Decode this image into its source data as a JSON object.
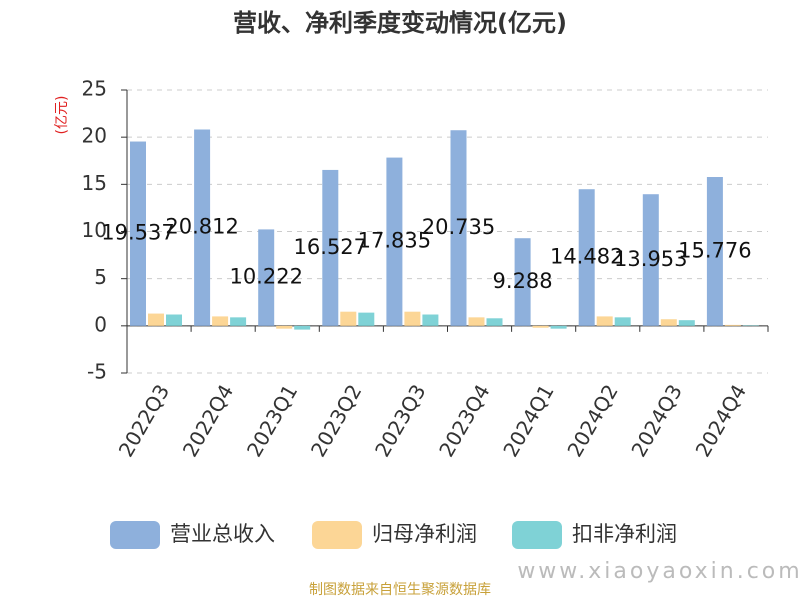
{
  "chart_data": {
    "type": "bar",
    "title": "营收、净利季度变动情况(亿元)",
    "y_label": "(亿元)",
    "categories": [
      "2022Q3",
      "2022Q4",
      "2023Q1",
      "2023Q2",
      "2023Q3",
      "2023Q4",
      "2024Q1",
      "2024Q2",
      "2024Q3",
      "2024Q4"
    ],
    "series": [
      {
        "name": "营业总收入",
        "color": "#8eb0dc",
        "values": [
          19.537,
          20.812,
          10.222,
          16.527,
          17.835,
          20.735,
          9.288,
          14.482,
          13.953,
          15.776
        ],
        "show_labels": true
      },
      {
        "name": "归母净利润",
        "color": "#fcd696",
        "values": [
          1.3,
          1.0,
          -0.3,
          1.5,
          1.5,
          0.9,
          -0.2,
          1.0,
          0.7,
          0.1
        ]
      },
      {
        "name": "扣非净利润",
        "color": "#7fd2d6",
        "values": [
          1.2,
          0.9,
          -0.4,
          1.4,
          1.2,
          0.8,
          -0.3,
          0.9,
          0.6,
          0.05
        ]
      }
    ],
    "ylim": [
      -5,
      25
    ],
    "yticks": [
      -5,
      0,
      5,
      10,
      15,
      20,
      25
    ],
    "grid": true,
    "source": "制图数据来自恒生聚源数据库",
    "watermark": "www.xiaoyaoxin.com"
  }
}
